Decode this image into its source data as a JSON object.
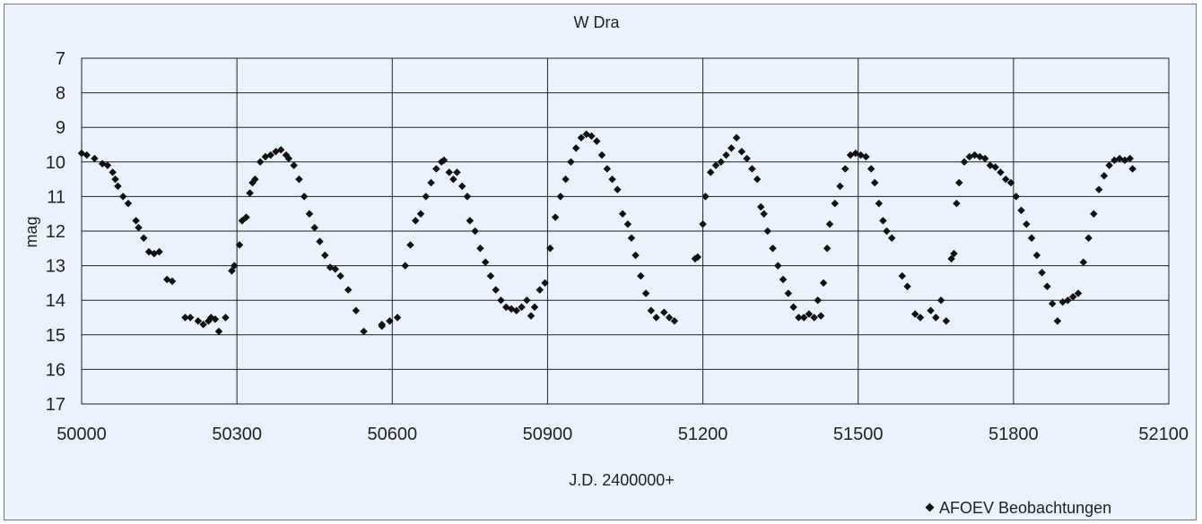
{
  "chart_data": {
    "type": "scatter",
    "title": "W Dra",
    "xlabel": "J.D. 2400000+",
    "ylabel": "mag",
    "xlim": [
      50000,
      52100
    ],
    "ylim": [
      17,
      7
    ],
    "y_inverted": true,
    "x_ticks": [
      50000,
      50300,
      50600,
      50900,
      51200,
      51500,
      51800,
      52100
    ],
    "y_ticks": [
      7,
      8,
      9,
      10,
      11,
      12,
      13,
      14,
      15,
      16,
      17
    ],
    "grid": true,
    "legend_position": "bottom-right",
    "series": [
      {
        "name": "AFOEV Beobachtungen",
        "color": "#111111",
        "marker": "diamond",
        "points": [
          [
            50000,
            9.75
          ],
          [
            50010,
            9.8
          ],
          [
            50025,
            9.9
          ],
          [
            50040,
            10.05
          ],
          [
            50050,
            10.1
          ],
          [
            50060,
            10.3
          ],
          [
            50065,
            10.5
          ],
          [
            50070,
            10.7
          ],
          [
            50080,
            11.0
          ],
          [
            50090,
            11.2
          ],
          [
            50105,
            11.7
          ],
          [
            50110,
            11.9
          ],
          [
            50120,
            12.2
          ],
          [
            50130,
            12.6
          ],
          [
            50140,
            12.65
          ],
          [
            50150,
            12.6
          ],
          [
            50165,
            13.4
          ],
          [
            50175,
            13.45
          ],
          [
            50200,
            14.5
          ],
          [
            50210,
            14.5
          ],
          [
            50225,
            14.6
          ],
          [
            50235,
            14.7
          ],
          [
            50245,
            14.6
          ],
          [
            50250,
            14.5
          ],
          [
            50258,
            14.55
          ],
          [
            50265,
            14.9
          ],
          [
            50278,
            14.5
          ],
          [
            50290,
            13.15
          ],
          [
            50295,
            13.0
          ],
          [
            50305,
            12.4
          ],
          [
            50310,
            11.7
          ],
          [
            50318,
            11.6
          ],
          [
            50325,
            10.9
          ],
          [
            50330,
            10.6
          ],
          [
            50335,
            10.5
          ],
          [
            50345,
            10.0
          ],
          [
            50355,
            9.85
          ],
          [
            50365,
            9.8
          ],
          [
            50375,
            9.7
          ],
          [
            50385,
            9.65
          ],
          [
            50395,
            9.8
          ],
          [
            50400,
            9.9
          ],
          [
            50410,
            10.1
          ],
          [
            50420,
            10.5
          ],
          [
            50430,
            11.0
          ],
          [
            50440,
            11.5
          ],
          [
            50450,
            11.9
          ],
          [
            50460,
            12.3
          ],
          [
            50470,
            12.7
          ],
          [
            50480,
            13.05
          ],
          [
            50490,
            13.1
          ],
          [
            50500,
            13.3
          ],
          [
            50515,
            13.7
          ],
          [
            50530,
            14.3
          ],
          [
            50545,
            14.9
          ],
          [
            50580,
            14.7
          ],
          [
            50580,
            14.75
          ],
          [
            50595,
            14.6
          ],
          [
            50610,
            14.5
          ],
          [
            50625,
            13.0
          ],
          [
            50635,
            12.4
          ],
          [
            50645,
            11.7
          ],
          [
            50655,
            11.5
          ],
          [
            50665,
            11.0
          ],
          [
            50675,
            10.6
          ],
          [
            50685,
            10.2
          ],
          [
            50695,
            10.0
          ],
          [
            50700,
            9.95
          ],
          [
            50710,
            10.3
          ],
          [
            50718,
            10.5
          ],
          [
            50725,
            10.3
          ],
          [
            50735,
            10.7
          ],
          [
            50745,
            11.0
          ],
          [
            50750,
            11.7
          ],
          [
            50760,
            12.0
          ],
          [
            50770,
            12.5
          ],
          [
            50780,
            12.9
          ],
          [
            50790,
            13.3
          ],
          [
            50800,
            13.7
          ],
          [
            50810,
            14.0
          ],
          [
            50820,
            14.2
          ],
          [
            50830,
            14.25
          ],
          [
            50840,
            14.3
          ],
          [
            50850,
            14.2
          ],
          [
            50860,
            14.0
          ],
          [
            50868,
            14.45
          ],
          [
            50875,
            14.2
          ],
          [
            50885,
            13.7
          ],
          [
            50895,
            13.5
          ],
          [
            50905,
            12.5
          ],
          [
            50915,
            11.6
          ],
          [
            50925,
            11.0
          ],
          [
            50935,
            10.5
          ],
          [
            50945,
            10.0
          ],
          [
            50955,
            9.6
          ],
          [
            50965,
            9.3
          ],
          [
            50975,
            9.2
          ],
          [
            50985,
            9.25
          ],
          [
            50995,
            9.4
          ],
          [
            51005,
            9.8
          ],
          [
            51015,
            10.2
          ],
          [
            51025,
            10.5
          ],
          [
            51035,
            10.8
          ],
          [
            51045,
            11.5
          ],
          [
            51055,
            11.8
          ],
          [
            51062,
            12.2
          ],
          [
            51070,
            12.7
          ],
          [
            51080,
            13.3
          ],
          [
            51090,
            13.8
          ],
          [
            51100,
            14.3
          ],
          [
            51110,
            14.5
          ],
          [
            51125,
            14.35
          ],
          [
            51135,
            14.5
          ],
          [
            51145,
            14.6
          ],
          [
            51185,
            12.8
          ],
          [
            51190,
            12.75
          ],
          [
            51200,
            11.8
          ],
          [
            51205,
            11.0
          ],
          [
            51215,
            10.3
          ],
          [
            51225,
            10.1
          ],
          [
            51235,
            10.0
          ],
          [
            51245,
            9.8
          ],
          [
            51255,
            9.6
          ],
          [
            51265,
            9.3
          ],
          [
            51275,
            9.7
          ],
          [
            51285,
            9.9
          ],
          [
            51295,
            10.2
          ],
          [
            51305,
            10.5
          ],
          [
            51312,
            11.3
          ],
          [
            51318,
            11.5
          ],
          [
            51325,
            12.0
          ],
          [
            51335,
            12.5
          ],
          [
            51345,
            13.0
          ],
          [
            51355,
            13.4
          ],
          [
            51365,
            13.8
          ],
          [
            51375,
            14.2
          ],
          [
            51385,
            14.5
          ],
          [
            51395,
            14.5
          ],
          [
            51405,
            14.4
          ],
          [
            51415,
            14.5
          ],
          [
            51422,
            14.0
          ],
          [
            51428,
            14.45
          ],
          [
            51433,
            13.5
          ],
          [
            51440,
            12.5
          ],
          [
            51445,
            11.8
          ],
          [
            51455,
            11.2
          ],
          [
            51465,
            10.7
          ],
          [
            51475,
            10.2
          ],
          [
            51485,
            9.8
          ],
          [
            51495,
            9.75
          ],
          [
            51505,
            9.8
          ],
          [
            51515,
            9.85
          ],
          [
            51525,
            10.2
          ],
          [
            51532,
            10.6
          ],
          [
            51540,
            11.2
          ],
          [
            51548,
            11.7
          ],
          [
            51555,
            12.0
          ],
          [
            51565,
            12.2
          ],
          [
            51585,
            13.3
          ],
          [
            51595,
            13.6
          ],
          [
            51610,
            14.4
          ],
          [
            51620,
            14.5
          ],
          [
            51640,
            14.3
          ],
          [
            51650,
            14.5
          ],
          [
            51660,
            14.0
          ],
          [
            51670,
            14.6
          ],
          [
            51680,
            12.8
          ],
          [
            51685,
            12.65
          ],
          [
            51690,
            11.2
          ],
          [
            51695,
            10.6
          ],
          [
            51705,
            10.0
          ],
          [
            51715,
            9.85
          ],
          [
            51725,
            9.8
          ],
          [
            51735,
            9.85
          ],
          [
            51745,
            9.9
          ],
          [
            51755,
            10.1
          ],
          [
            51765,
            10.15
          ],
          [
            51775,
            10.3
          ],
          [
            51785,
            10.5
          ],
          [
            51795,
            10.6
          ],
          [
            51805,
            11.0
          ],
          [
            51815,
            11.4
          ],
          [
            51825,
            11.8
          ],
          [
            51835,
            12.2
          ],
          [
            51845,
            12.7
          ],
          [
            51855,
            13.2
          ],
          [
            51865,
            13.6
          ],
          [
            51875,
            14.1
          ],
          [
            51885,
            14.6
          ],
          [
            51895,
            14.05
          ],
          [
            51905,
            14.0
          ],
          [
            51915,
            13.9
          ],
          [
            51925,
            13.8
          ],
          [
            51935,
            12.9
          ],
          [
            51945,
            12.2
          ],
          [
            51955,
            11.5
          ],
          [
            51965,
            10.8
          ],
          [
            51975,
            10.4
          ],
          [
            51985,
            10.1
          ],
          [
            51995,
            9.95
          ],
          [
            52005,
            9.9
          ],
          [
            52015,
            9.95
          ],
          [
            52025,
            9.9
          ],
          [
            52030,
            10.2
          ]
        ]
      }
    ]
  }
}
